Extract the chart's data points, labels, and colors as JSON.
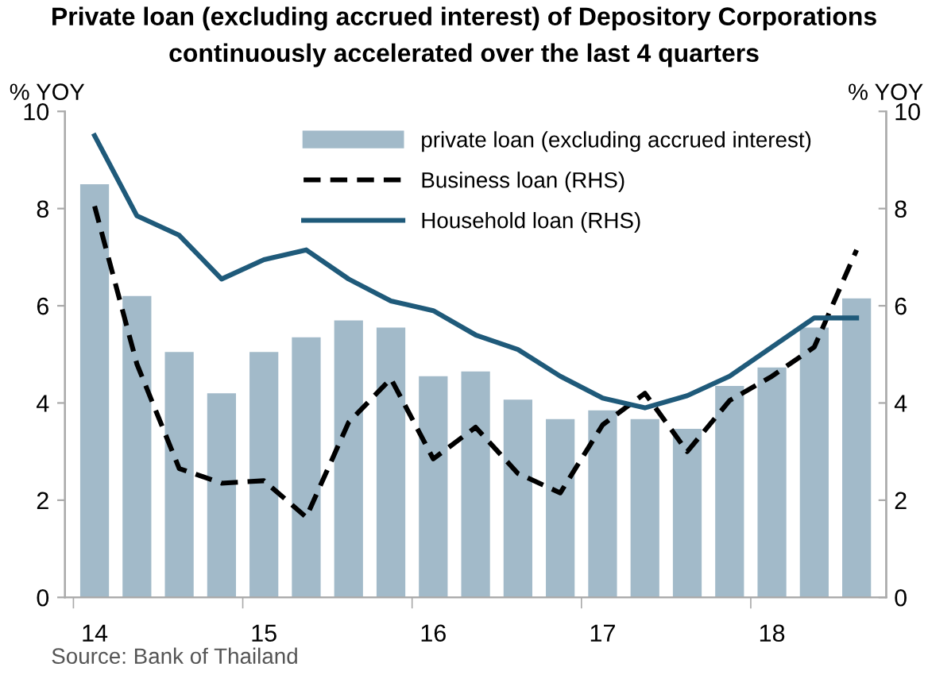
{
  "chart_data": {
    "type": "bar",
    "title": "Private loan (excluding accrued interest) of Depository Corporations\ncontinuously accelerated over the last 4 quarters",
    "ylabel": "% YOY",
    "y2label": "% YOY",
    "categories": [
      "14",
      null,
      null,
      null,
      "15",
      null,
      null,
      null,
      "16",
      null,
      null,
      null,
      "17",
      null,
      null,
      null,
      "18",
      null,
      null
    ],
    "series": [
      {
        "name": "private loan (excluding accrued interest)",
        "color": "#a2bac9",
        "values": [
          8.5,
          6.2,
          5.05,
          4.2,
          5.05,
          5.35,
          5.7,
          5.55,
          4.55,
          4.65,
          4.07,
          3.67,
          3.85,
          3.67,
          3.47,
          4.35,
          4.73,
          5.55,
          6.15
        ]
      },
      {
        "name": "Business loan (RHS)",
        "type": "line",
        "axis": "y2",
        "line_style": "dashed",
        "color": "#000000",
        "values": [
          8.05,
          4.8,
          2.65,
          2.35,
          2.4,
          1.65,
          3.6,
          4.5,
          2.85,
          3.5,
          2.55,
          2.15,
          3.55,
          4.2,
          3.0,
          4.05,
          4.55,
          5.15,
          7.15
        ]
      },
      {
        "name": "Household loan (RHS)",
        "type": "line",
        "axis": "y2",
        "line_style": "solid",
        "color": "#1f5a7a",
        "values": [
          9.5,
          7.85,
          7.45,
          6.55,
          6.95,
          7.15,
          6.55,
          6.1,
          5.9,
          5.4,
          5.1,
          4.55,
          4.1,
          3.9,
          4.15,
          4.55,
          5.15,
          5.75,
          5.75
        ]
      }
    ],
    "ylim": [
      0,
      10
    ],
    "yticks": [
      0,
      2,
      4,
      6,
      8,
      10
    ],
    "y2lim": [
      0,
      10
    ],
    "y2ticks": [
      0,
      2,
      4,
      6,
      8,
      10
    ],
    "grid": false,
    "legend": "top",
    "marker": "none",
    "annotations": [
      "Source: Bank of Thailand"
    ]
  }
}
